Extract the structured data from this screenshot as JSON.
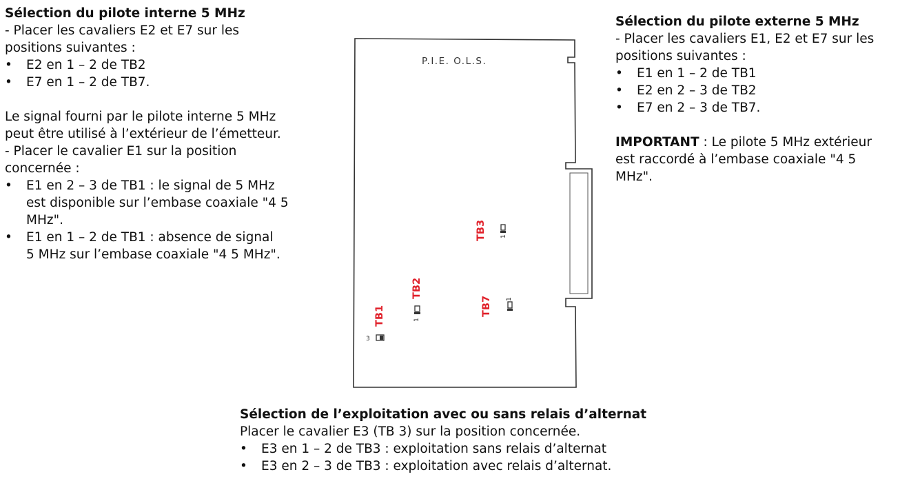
{
  "internal_pilot": {
    "title": "Sélection du pilote interne 5 MHz",
    "intro_lines": [
      "- Placer les cavaliers E2 et E7 sur les",
      "positions suivantes :"
    ],
    "positions": [
      "E2 en 1 – 2 de TB2",
      "E7 en 1 – 2 de TB7."
    ],
    "signal_lines": [
      "Le signal fourni par le pilote interne 5 MHz",
      "peut être utilisé à l’extérieur de l’émetteur.",
      "- Placer le cavalier E1 sur la position",
      "concernée :"
    ],
    "e1_options": [
      {
        "line1": "E1 en 2 – 3 de TB1 : le signal de 5 MHz",
        "line2": "est disponible sur l’embase coaxiale \"4 5",
        "line3": "MHz\"."
      },
      {
        "line1": "E1 en 1 – 2 de TB1 : absence de signal",
        "line2": "5 MHz sur l’embase coaxiale \"4 5 MHz\"."
      }
    ]
  },
  "external_pilot": {
    "title": "Sélection du pilote externe 5 MHz",
    "intro_lines": [
      "- Placer les cavaliers E1, E2 et E7 sur les",
      "positions suivantes :"
    ],
    "positions": [
      "E1 en 1 – 2 de TB1",
      "E2 en 2 – 3 de TB2",
      "E7 en 2 – 3 de TB7."
    ],
    "important_label": "IMPORTANT",
    "important_lines": [
      " : Le pilote 5 MHz extérieur",
      "est raccordé à l’embase coaxiale \"4 5",
      "MHz\"."
    ]
  },
  "relay": {
    "title": "Sélection de l’exploitation avec ou sans relais d’alternat",
    "intro": "Placer le cavalier E3 (TB 3) sur la position concernée.",
    "options": [
      "E3 en 1 – 2 de TB3 : exploitation sans relais d’alternat",
      "E3 en 2 – 3 de TB3 : exploitation avec relais d’alternat."
    ]
  },
  "diagram": {
    "board_label": "P.I.E. O.L.S.",
    "tb1": "TB1",
    "tb2": "TB2",
    "tb3": "TB3",
    "tb7": "TB7",
    "tb1_pin": "3",
    "tb2_pin": "1",
    "tb3_pin": "1",
    "tb7_pin": "1",
    "label_color": "#e0202a"
  }
}
